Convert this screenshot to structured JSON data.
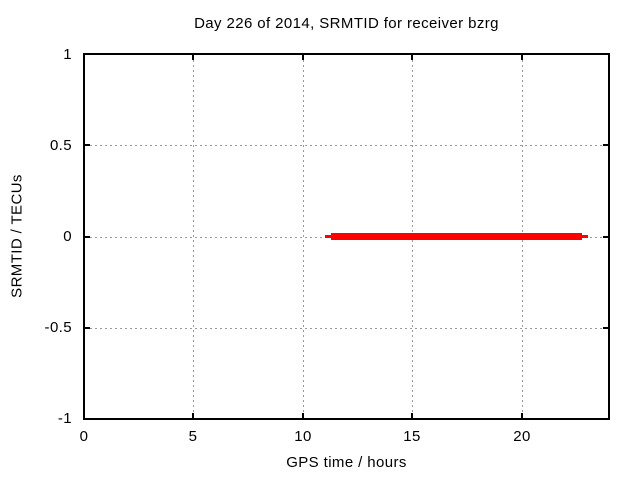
{
  "chart": {
    "title": "Day 226 of 2014, SRMTID for receiver bzrg",
    "xlabel": "GPS time / hours",
    "ylabel": "SRMTID / TECUs",
    "x_tick_labels": [
      "0",
      "5",
      "10",
      "15",
      "20"
    ],
    "y_tick_labels": [
      "1",
      "0.5",
      "0",
      "-0.5",
      "-1"
    ]
  },
  "chart_data": {
    "type": "line",
    "title": "Day 226 of 2014, SRMTID for receiver bzrg",
    "xlabel": "GPS time / hours",
    "ylabel": "SRMTID / TECUs",
    "xlim": [
      0,
      24
    ],
    "ylim": [
      -1,
      1
    ],
    "x_ticks": [
      0,
      5,
      10,
      15,
      20
    ],
    "y_ticks": [
      -1,
      -0.5,
      0,
      0.5,
      1
    ],
    "grid": true,
    "legend": "none",
    "series": [
      {
        "name": "SRMTID",
        "color": "#ff0000",
        "style": "thick horizontal line segment at constant value",
        "points": [
          {
            "x": 11.0,
            "y": 0
          },
          {
            "x": 23.0,
            "y": 0
          }
        ]
      }
    ],
    "colors": {
      "line": "#ff0000",
      "grid": "#9a9a9a",
      "frame": "#000000",
      "background": "#ffffff"
    }
  }
}
